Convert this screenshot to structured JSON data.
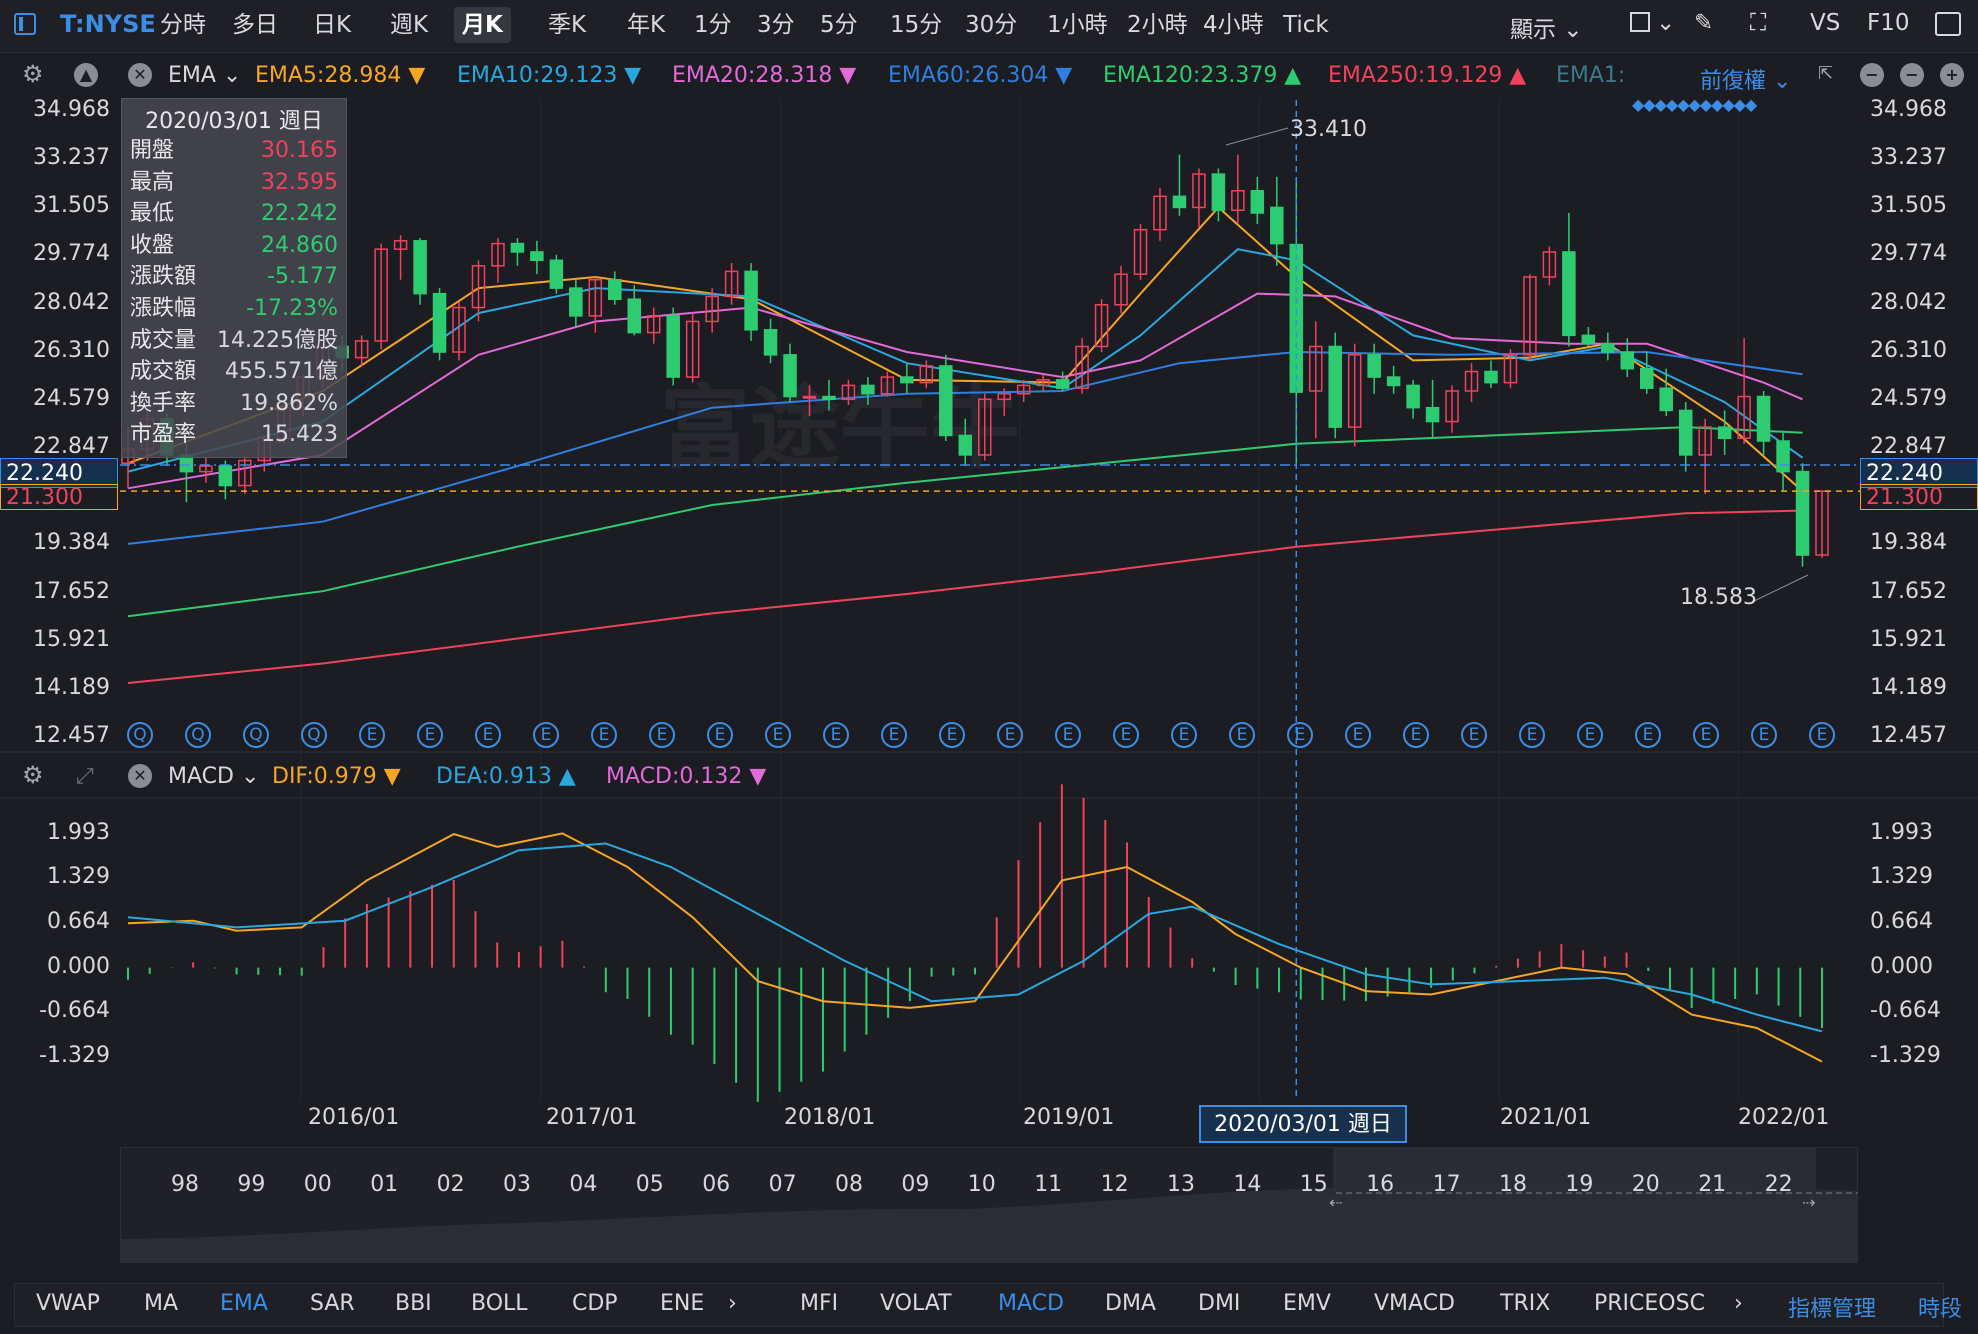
{
  "toolbar": {
    "ticker": "T:NYSE",
    "timeframes": [
      "分時",
      "多日",
      "日K",
      "週K",
      "月K",
      "季K",
      "年K",
      "1分",
      "3分",
      "5分",
      "15分",
      "30分",
      "1小時",
      "2小時",
      "4小時",
      "Tick"
    ],
    "active_timeframe": "月K",
    "display_label": "顯示",
    "vs_label": "VS",
    "f10_label": "F10"
  },
  "main_indicator": {
    "name": "EMA",
    "items": [
      {
        "label": "EMA5:28.984",
        "arrow": "▼",
        "color": "#f5a623"
      },
      {
        "label": "EMA10:29.123",
        "arrow": "▼",
        "color": "#29a8e0"
      },
      {
        "label": "EMA20:28.318",
        "arrow": "▼",
        "color": "#e26ad9"
      },
      {
        "label": "EMA60:26.304",
        "arrow": "▼",
        "color": "#2f7fe0"
      },
      {
        "label": "EMA120:23.379",
        "arrow": "▲",
        "color": "#2ecc71"
      },
      {
        "label": "EMA250:19.129",
        "arrow": "▲",
        "color": "#f0425c"
      },
      {
        "label": "EMA1:",
        "arrow": "",
        "color": "#3a7a8a"
      }
    ],
    "adjust_label": "前復權"
  },
  "price_axis": [
    "34.968",
    "33.237",
    "31.505",
    "29.774",
    "28.042",
    "26.310",
    "24.579",
    "22.847",
    "19.384",
    "17.652",
    "15.921",
    "14.189",
    "12.457"
  ],
  "crosshair_price": "22.240",
  "last_price": "21.300",
  "high_label": "33.410",
  "low_label": "18.583",
  "watermark": "富途牛牛",
  "tooltip": {
    "date": "2020/03/01 週日",
    "rows": [
      {
        "k": "開盤",
        "v": "30.165",
        "c": "red"
      },
      {
        "k": "最高",
        "v": "32.595",
        "c": "red"
      },
      {
        "k": "最低",
        "v": "22.242",
        "c": "green"
      },
      {
        "k": "收盤",
        "v": "24.860",
        "c": "green"
      },
      {
        "k": "漲跌額",
        "v": "-5.177",
        "c": "green"
      },
      {
        "k": "漲跌幅",
        "v": "-17.23%",
        "c": "green"
      },
      {
        "k": "成交量",
        "v": "14.225億股",
        "c": ""
      },
      {
        "k": "成交額",
        "v": "455.571億",
        "c": ""
      },
      {
        "k": "換手率",
        "v": "19.862%",
        "c": ""
      },
      {
        "k": "市盈率",
        "v": "15.423",
        "c": ""
      }
    ]
  },
  "event_markers": [
    "Q",
    "Q",
    "Q",
    "Q",
    "E",
    "E",
    "E",
    "E",
    "E",
    "E",
    "E",
    "E",
    "E",
    "E",
    "E",
    "E",
    "E",
    "E",
    "E",
    "E",
    "E",
    "E",
    "E",
    "E",
    "E",
    "E",
    "E",
    "E",
    "E",
    "E"
  ],
  "sub_indicator": {
    "name": "MACD",
    "items": [
      {
        "label": "DIF:0.979",
        "arrow": "▼",
        "color": "#f5a623"
      },
      {
        "label": "DEA:0.913",
        "arrow": "▲",
        "color": "#29a8e0"
      },
      {
        "label": "MACD:0.132",
        "arrow": "▼",
        "color": "#e26ad9"
      }
    ],
    "axis": [
      "1.993",
      "1.329",
      "0.664",
      "0.000",
      "-0.664",
      "-1.329"
    ]
  },
  "x_axis": [
    "2016/01",
    "2017/01",
    "2018/01",
    "2019/01",
    "2021/01",
    "2022/01"
  ],
  "crosshair_date": "2020/03/01 週日",
  "navigator_years": [
    "98",
    "99",
    "00",
    "01",
    "02",
    "03",
    "04",
    "05",
    "06",
    "07",
    "08",
    "09",
    "10",
    "11",
    "12",
    "13",
    "14",
    "15",
    "16",
    "17",
    "18",
    "19",
    "20",
    "21",
    "22"
  ],
  "bottom_tabs": {
    "main": [
      "VWAP",
      "MA",
      "EMA",
      "SAR",
      "BBI",
      "BOLL",
      "CDP",
      "ENE"
    ],
    "sub": [
      "MFI",
      "VOLAT",
      "MACD",
      "DMA",
      "DMI",
      "EMV",
      "VMACD",
      "TRIX",
      "PRICEOSC"
    ],
    "active_main": "EMA",
    "active_sub": "MACD",
    "manage_label": "指標管理",
    "period_label": "時段"
  },
  "colors": {
    "up": "#f0425c",
    "down": "#2ecc71",
    "accent": "#3b8de6",
    "bg": "#1c1d22"
  },
  "chart_data": {
    "type": "candlestick",
    "x_range": [
      "2015/03",
      "2022/03"
    ],
    "ylim": [
      12.457,
      34.968
    ],
    "ohlc": [
      [
        22.3,
        23.6,
        21.4,
        22.8
      ],
      [
        22.8,
        24.2,
        22.4,
        23.9
      ],
      [
        23.9,
        24.1,
        22.2,
        22.6
      ],
      [
        22.6,
        23.1,
        20.9,
        22.0
      ],
      [
        22.0,
        22.5,
        21.6,
        22.2
      ],
      [
        22.2,
        22.4,
        21.0,
        21.5
      ],
      [
        21.5,
        22.6,
        21.2,
        22.4
      ],
      [
        22.4,
        23.3,
        22.0,
        23.2
      ],
      [
        23.2,
        24.4,
        23.0,
        24.3
      ],
      [
        24.3,
        25.5,
        24.0,
        25.4
      ],
      [
        25.4,
        26.6,
        25.0,
        26.5
      ],
      [
        26.5,
        26.9,
        25.6,
        26.1
      ],
      [
        26.1,
        26.9,
        25.8,
        26.7
      ],
      [
        26.7,
        30.2,
        26.4,
        30.0
      ],
      [
        30.0,
        30.5,
        28.9,
        30.3
      ],
      [
        30.3,
        30.4,
        28.0,
        28.4
      ],
      [
        28.4,
        28.6,
        26.0,
        26.3
      ],
      [
        26.3,
        28.1,
        26.0,
        27.9
      ],
      [
        27.9,
        29.6,
        27.4,
        29.4
      ],
      [
        29.4,
        30.4,
        28.8,
        30.2
      ],
      [
        30.2,
        30.4,
        29.4,
        29.9
      ],
      [
        29.9,
        30.3,
        29.1,
        29.6
      ],
      [
        29.6,
        29.8,
        28.4,
        28.6
      ],
      [
        28.6,
        28.9,
        27.2,
        27.6
      ],
      [
        27.6,
        29.0,
        27.0,
        28.9
      ],
      [
        28.9,
        29.2,
        28.0,
        28.2
      ],
      [
        28.2,
        28.7,
        26.9,
        27.0
      ],
      [
        27.0,
        27.9,
        26.6,
        27.6
      ],
      [
        27.6,
        27.9,
        25.1,
        25.4
      ],
      [
        25.4,
        27.7,
        25.2,
        27.4
      ],
      [
        27.4,
        28.6,
        27.0,
        28.3
      ],
      [
        28.3,
        29.5,
        28.0,
        29.2
      ],
      [
        29.2,
        29.5,
        26.7,
        27.1
      ],
      [
        27.1,
        27.5,
        25.9,
        26.2
      ],
      [
        26.2,
        26.6,
        24.5,
        24.7
      ],
      [
        24.7,
        25.1,
        24.0,
        24.7
      ],
      [
        24.7,
        25.3,
        24.2,
        24.6
      ],
      [
        24.6,
        25.3,
        24.4,
        25.1
      ],
      [
        25.1,
        25.4,
        24.4,
        24.8
      ],
      [
        24.8,
        25.6,
        24.7,
        25.4
      ],
      [
        25.4,
        25.9,
        24.8,
        25.2
      ],
      [
        25.2,
        26.0,
        25.0,
        25.8
      ],
      [
        25.8,
        26.2,
        23.1,
        23.3
      ],
      [
        23.3,
        23.9,
        22.2,
        22.6
      ],
      [
        22.6,
        24.8,
        22.4,
        24.6
      ],
      [
        24.6,
        25.0,
        24.0,
        24.8
      ],
      [
        24.8,
        25.3,
        24.5,
        25.1
      ],
      [
        25.1,
        25.5,
        24.9,
        25.3
      ],
      [
        25.3,
        25.6,
        24.9,
        25.0
      ],
      [
        25.0,
        26.8,
        24.8,
        26.5
      ],
      [
        26.5,
        28.2,
        26.3,
        28.0
      ],
      [
        28.0,
        29.4,
        27.7,
        29.1
      ],
      [
        29.1,
        30.9,
        28.9,
        30.7
      ],
      [
        30.7,
        32.2,
        30.3,
        31.9
      ],
      [
        31.9,
        33.4,
        31.2,
        31.5
      ],
      [
        31.5,
        32.9,
        30.8,
        32.7
      ],
      [
        32.7,
        32.9,
        31.0,
        31.4
      ],
      [
        31.4,
        33.4,
        30.9,
        32.1
      ],
      [
        32.1,
        32.6,
        30.9,
        31.3
      ],
      [
        31.5,
        32.6,
        29.4,
        30.2
      ],
      [
        30.165,
        32.595,
        22.242,
        24.86
      ],
      [
        24.9,
        27.4,
        23.2,
        26.5
      ],
      [
        26.5,
        27.0,
        23.2,
        23.6
      ],
      [
        23.6,
        26.6,
        22.9,
        26.2
      ],
      [
        26.2,
        26.6,
        24.8,
        25.4
      ],
      [
        25.4,
        25.8,
        24.8,
        25.1
      ],
      [
        25.1,
        25.3,
        23.9,
        24.3
      ],
      [
        24.3,
        25.3,
        23.2,
        23.8
      ],
      [
        23.8,
        25.1,
        23.4,
        24.9
      ],
      [
        24.9,
        25.9,
        24.5,
        25.6
      ],
      [
        25.6,
        26.0,
        25.0,
        25.2
      ],
      [
        25.2,
        26.4,
        25.0,
        26.2
      ],
      [
        26.2,
        29.1,
        26.0,
        29.0
      ],
      [
        29.0,
        30.1,
        28.7,
        29.9
      ],
      [
        29.9,
        31.3,
        26.5,
        26.9
      ],
      [
        26.9,
        27.2,
        26.5,
        26.6
      ],
      [
        26.6,
        27.0,
        26.0,
        26.3
      ],
      [
        26.3,
        26.8,
        25.4,
        25.7
      ],
      [
        25.7,
        26.3,
        24.8,
        25.0
      ],
      [
        25.0,
        25.7,
        24.0,
        24.2
      ],
      [
        24.2,
        24.5,
        22.0,
        22.6
      ],
      [
        22.6,
        23.9,
        21.2,
        23.6
      ],
      [
        23.6,
        24.2,
        22.6,
        23.2
      ],
      [
        23.2,
        26.8,
        23.0,
        24.7
      ],
      [
        24.7,
        24.9,
        22.6,
        23.1
      ],
      [
        23.1,
        23.4,
        21.3,
        22.0
      ],
      [
        22.0,
        22.3,
        18.583,
        19.0
      ],
      [
        19.0,
        21.3,
        18.9,
        21.3
      ]
    ],
    "ema": {
      "EMA5": {
        "color": "#f5a623",
        "points": [
          [
            0,
            22.3
          ],
          [
            10,
            24.9
          ],
          [
            18,
            28.6
          ],
          [
            24,
            29.0
          ],
          [
            32,
            28.2
          ],
          [
            40,
            25.3
          ],
          [
            48,
            25.2
          ],
          [
            52,
            28.4
          ],
          [
            56,
            31.5
          ],
          [
            60,
            29.0
          ],
          [
            66,
            26.0
          ],
          [
            72,
            26.1
          ],
          [
            76,
            26.6
          ],
          [
            82,
            23.8
          ],
          [
            86,
            21.3
          ]
        ]
      },
      "EMA10": {
        "color": "#29a8e0",
        "points": [
          [
            0,
            22.0
          ],
          [
            10,
            23.8
          ],
          [
            18,
            27.7
          ],
          [
            24,
            28.6
          ],
          [
            32,
            28.3
          ],
          [
            40,
            25.9
          ],
          [
            48,
            25.0
          ],
          [
            52,
            26.9
          ],
          [
            57,
            30.0
          ],
          [
            60,
            29.6
          ],
          [
            66,
            26.9
          ],
          [
            72,
            26.0
          ],
          [
            76,
            26.5
          ],
          [
            82,
            24.5
          ],
          [
            86,
            22.5
          ]
        ]
      },
      "EMA20": {
        "color": "#e26ad9",
        "points": [
          [
            0,
            21.4
          ],
          [
            10,
            22.6
          ],
          [
            18,
            26.2
          ],
          [
            24,
            27.4
          ],
          [
            32,
            27.9
          ],
          [
            40,
            26.3
          ],
          [
            48,
            25.4
          ],
          [
            52,
            26.0
          ],
          [
            58,
            28.4
          ],
          [
            62,
            28.3
          ],
          [
            68,
            26.8
          ],
          [
            74,
            26.6
          ],
          [
            78,
            26.6
          ],
          [
            84,
            25.2
          ],
          [
            86,
            24.6
          ]
        ]
      },
      "EMA60": {
        "color": "#2f7fe0",
        "points": [
          [
            0,
            19.4
          ],
          [
            10,
            20.2
          ],
          [
            20,
            22.2
          ],
          [
            30,
            24.3
          ],
          [
            40,
            24.8
          ],
          [
            48,
            24.9
          ],
          [
            54,
            25.9
          ],
          [
            60,
            26.3
          ],
          [
            68,
            26.2
          ],
          [
            78,
            26.3
          ],
          [
            86,
            25.5
          ]
        ]
      },
      "EMA120": {
        "color": "#2ecc71",
        "points": [
          [
            0,
            16.8
          ],
          [
            10,
            17.7
          ],
          [
            20,
            19.3
          ],
          [
            30,
            20.8
          ],
          [
            40,
            21.6
          ],
          [
            50,
            22.3
          ],
          [
            60,
            23.0
          ],
          [
            70,
            23.3
          ],
          [
            80,
            23.6
          ],
          [
            86,
            23.4
          ]
        ]
      },
      "EMA250": {
        "color": "#f0425c",
        "points": [
          [
            0,
            14.4
          ],
          [
            10,
            15.1
          ],
          [
            20,
            16.0
          ],
          [
            30,
            16.9
          ],
          [
            40,
            17.6
          ],
          [
            50,
            18.4
          ],
          [
            60,
            19.3
          ],
          [
            70,
            19.9
          ],
          [
            80,
            20.5
          ],
          [
            86,
            20.6
          ]
        ]
      }
    },
    "macd": {
      "ylim": [
        -1.6,
        2.2
      ],
      "dif": [
        [
          0,
          0.66
        ],
        [
          6,
          0.7
        ],
        [
          10,
          0.55
        ],
        [
          16,
          0.6
        ],
        [
          22,
          1.3
        ],
        [
          30,
          1.99
        ],
        [
          34,
          1.8
        ],
        [
          40,
          2.0
        ],
        [
          46,
          1.5
        ],
        [
          52,
          0.75
        ],
        [
          58,
          -0.2
        ],
        [
          64,
          -0.5
        ],
        [
          72,
          -0.6
        ],
        [
          78,
          -0.5
        ],
        [
          86,
          1.3
        ],
        [
          92,
          1.5
        ],
        [
          98,
          0.98
        ],
        [
          102,
          0.5
        ],
        [
          108,
          0.0
        ],
        [
          114,
          -0.35
        ],
        [
          120,
          -0.4
        ],
        [
          126,
          -0.2
        ],
        [
          132,
          0.0
        ],
        [
          138,
          -0.1
        ],
        [
          144,
          -0.7
        ],
        [
          150,
          -0.9
        ],
        [
          156,
          -1.4
        ]
      ],
      "dea": [
        [
          0,
          0.75
        ],
        [
          10,
          0.6
        ],
        [
          20,
          0.7
        ],
        [
          28,
          1.2
        ],
        [
          36,
          1.75
        ],
        [
          44,
          1.85
        ],
        [
          50,
          1.5
        ],
        [
          58,
          0.8
        ],
        [
          66,
          0.1
        ],
        [
          74,
          -0.5
        ],
        [
          82,
          -0.4
        ],
        [
          88,
          0.1
        ],
        [
          94,
          0.8
        ],
        [
          98,
          0.91
        ],
        [
          106,
          0.35
        ],
        [
          114,
          -0.1
        ],
        [
          120,
          -0.25
        ],
        [
          128,
          -0.2
        ],
        [
          136,
          -0.15
        ],
        [
          144,
          -0.4
        ],
        [
          150,
          -0.7
        ],
        [
          156,
          -0.95
        ]
      ]
    }
  }
}
